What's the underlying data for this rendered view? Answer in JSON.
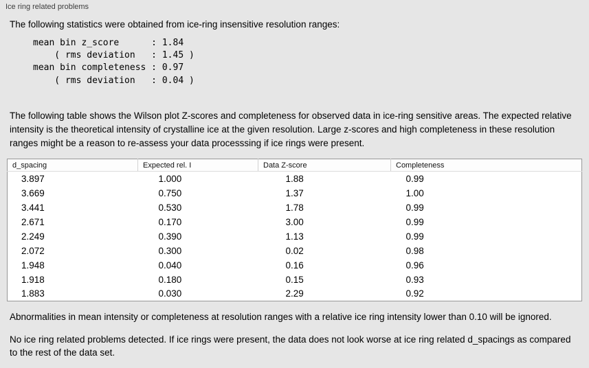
{
  "panel_title": "Ice ring related problems",
  "intro": "The following statistics were obtained from ice-ring insensitive resolution ranges:",
  "stats_block": "mean bin z_score      : 1.84\n    ( rms deviation   : 1.45 )\nmean bin completeness : 0.97\n    ( rms deviation   : 0.04 )",
  "description": "The following table shows the Wilson plot Z-scores and completeness for observed data in ice-ring sensitive areas. The expected relative intensity is the theoretical intensity of crystalline ice at the given resolution. Large z-scores and high completeness in these resolution ranges might be a reason to re-assess your data processsing if ice rings were present.",
  "table": {
    "headers": [
      "d_spacing",
      "Expected rel. I",
      "Data Z-score",
      "Completeness"
    ],
    "rows": [
      [
        "3.897",
        "1.000",
        "1.88",
        "0.99"
      ],
      [
        "3.669",
        "0.750",
        "1.37",
        "1.00"
      ],
      [
        "3.441",
        "0.530",
        "1.78",
        "0.99"
      ],
      [
        "2.671",
        "0.170",
        "3.00",
        "0.99"
      ],
      [
        "2.249",
        "0.390",
        "1.13",
        "0.99"
      ],
      [
        "2.072",
        "0.300",
        "0.02",
        "0.98"
      ],
      [
        "1.948",
        "0.040",
        "0.16",
        "0.96"
      ],
      [
        "1.918",
        "0.180",
        "0.15",
        "0.93"
      ],
      [
        "1.883",
        "0.030",
        "2.29",
        "0.92"
      ]
    ]
  },
  "note_ignore": "Abnormalities in mean intensity or completeness at resolution ranges with a relative ice ring intensity lower than 0.10 will be ignored.",
  "conclusion": "No ice ring related problems detected. If ice rings were present, the data does not look worse at ice ring related d_spacings as compared to the rest of the data set."
}
